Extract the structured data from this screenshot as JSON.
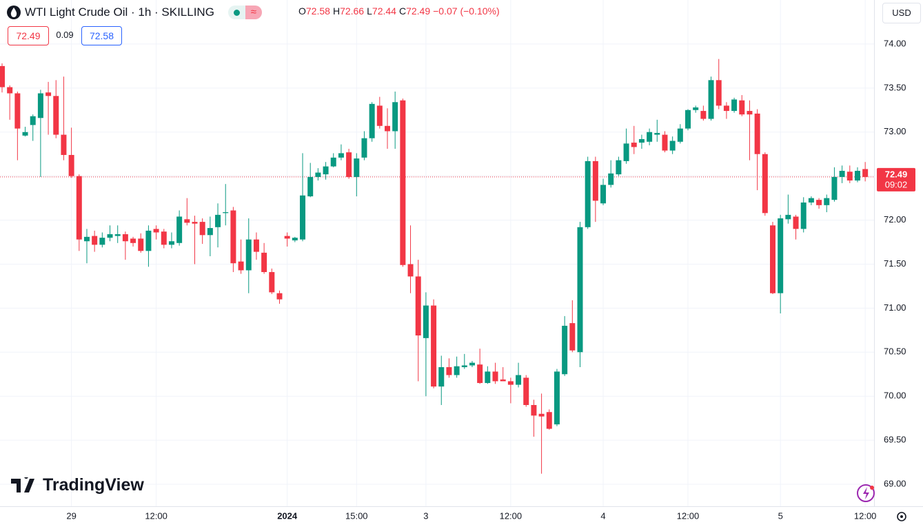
{
  "chart_data": {
    "type": "candlestick",
    "title": "WTI Light Crude Oil · 1h · SKILLING",
    "ohlc_legend": [
      {
        "key": "O",
        "value": "72.58"
      },
      {
        "key": "H",
        "value": "72.66"
      },
      {
        "key": "L",
        "value": "72.44"
      },
      {
        "key": "C",
        "value": "72.49"
      }
    ],
    "change": "−0.07 (−0.10%)",
    "bid": "72.49",
    "spread": "0.09",
    "ask": "72.58",
    "currency": "USD",
    "last_price_label": "72.49",
    "countdown": "09:02",
    "brand": "TradingView",
    "up_color": "#089981",
    "down_color": "#f23645",
    "grid": true,
    "ylim": [
      68.75,
      74.5
    ],
    "yticks": [
      {
        "value": 69,
        "label": "69.00"
      },
      {
        "value": 69.5,
        "label": "69.50"
      },
      {
        "value": 70,
        "label": "70.00"
      },
      {
        "value": 70.5,
        "label": "70.50"
      },
      {
        "value": 71,
        "label": "71.00"
      },
      {
        "value": 71.5,
        "label": "71.50"
      },
      {
        "value": 72,
        "label": "72.00"
      },
      {
        "value": 72.5,
        "label": "72.50"
      },
      {
        "value": 73,
        "label": "73.00"
      },
      {
        "value": 73.5,
        "label": "73.50"
      },
      {
        "value": 74,
        "label": "74.00"
      }
    ],
    "categories": [
      null,
      null,
      null,
      null,
      null,
      null,
      null,
      null,
      null,
      "29",
      null,
      null,
      null,
      null,
      null,
      null,
      null,
      null,
      null,
      null,
      "12:00",
      null,
      null,
      null,
      null,
      null,
      null,
      null,
      null,
      null,
      null,
      null,
      null,
      null,
      null,
      null,
      null,
      "2024",
      null,
      null,
      null,
      null,
      null,
      null,
      null,
      null,
      "15:00",
      null,
      null,
      null,
      null,
      null,
      null,
      null,
      null,
      "3",
      null,
      null,
      null,
      null,
      null,
      null,
      null,
      null,
      null,
      null,
      "12:00",
      null,
      null,
      null,
      null,
      null,
      null,
      null,
      null,
      null,
      null,
      null,
      "4",
      null,
      null,
      null,
      null,
      null,
      null,
      null,
      null,
      null,
      null,
      "12:00",
      null,
      null,
      null,
      null,
      null,
      null,
      null,
      null,
      null,
      null,
      null,
      "5",
      null,
      null,
      null,
      null,
      null,
      null,
      null,
      null,
      null,
      null,
      "12:00"
    ],
    "open": [
      73.75,
      73.51,
      73.44,
      72.96,
      73.08,
      73.16,
      73.45,
      73.41,
      72.97,
      72.74,
      72.5,
      71.76,
      71.82,
      71.72,
      71.8,
      71.82,
      71.84,
      71.79,
      71.79,
      71.65,
      71.9,
      71.87,
      71.72,
      71.74,
      72.01,
      71.98,
      71.98,
      71.83,
      71.92,
      72.08,
      72.11,
      71.53,
      71.43,
      71.78,
      71.63,
      71.41,
      71.17,
      71.82,
      71.77,
      71.78,
      72.27,
      72.49,
      72.52,
      72.61,
      72.71,
      72.77,
      72.49,
      72.71,
      72.93,
      73.3,
      73.07,
      73.01,
      73.36,
      71.5,
      71.36,
      70.66,
      71.03,
      70.11,
      70.33,
      70.24,
      70.33,
      70.35,
      70.36,
      70.15,
      70.28,
      70.19,
      70.17,
      70.13,
      70.21,
      69.9,
      69.8,
      69.82,
      69.68,
      70.25,
      70.83,
      70.5,
      71.92,
      72.67,
      72.19,
      72.4,
      72.52,
      72.67,
      72.88,
      72.88,
      72.89,
      72.97,
      72.97,
      72.79,
      72.89,
      73.04,
      73.25,
      73.24,
      73.15,
      73.59,
      73.3,
      73.24,
      73.36,
      73.24,
      73.21,
      72.75,
      71.94,
      71.17,
      72.01,
      72.04,
      71.9,
      72.2,
      72.23,
      72.17,
      72.23,
      72.49,
      72.55,
      72.45,
      72.58
    ],
    "high": [
      73.78,
      73.53,
      73.46,
      73.06,
      73.2,
      73.48,
      73.57,
      73.59,
      73.63,
      73.05,
      72.52,
      71.9,
      71.88,
      71.86,
      71.94,
      71.94,
      71.87,
      71.81,
      71.85,
      71.94,
      71.94,
      71.9,
      71.86,
      72.11,
      72.25,
      72.05,
      72.02,
      72.04,
      72.19,
      72.41,
      72.15,
      71.78,
      72.02,
      71.86,
      71.74,
      71.45,
      71.2,
      71.86,
      71.81,
      72.76,
      72.65,
      72.59,
      72.66,
      72.76,
      72.86,
      72.81,
      72.76,
      73.01,
      73.34,
      73.4,
      73.27,
      73.46,
      73.38,
      71.94,
      71.55,
      71.18,
      71.1,
      70.46,
      70.43,
      70.45,
      70.48,
      70.4,
      70.54,
      70.34,
      70.38,
      70.33,
      70.21,
      70.38,
      70.24,
      69.96,
      70.03,
      69.85,
      70.31,
      70.91,
      71.09,
      71.98,
      72.72,
      72.72,
      72.47,
      72.68,
      72.72,
      73.04,
      73.07,
      72.97,
      73.04,
      73.14,
      73.01,
      72.95,
      73.09,
      73.26,
      73.3,
      73.3,
      73.63,
      73.83,
      73.34,
      73.39,
      73.42,
      73.36,
      73.26,
      72.77,
      71.98,
      72.06,
      72.29,
      72.06,
      72.26,
      72.27,
      72.25,
      72.29,
      72.6,
      72.62,
      72.62,
      72.6,
      72.66
    ],
    "low": [
      73.45,
      73.14,
      72.68,
      72.95,
      72.9,
      72.49,
      72.97,
      72.93,
      72.68,
      72.48,
      71.65,
      71.51,
      71.64,
      71.69,
      71.76,
      71.74,
      71.55,
      71.7,
      71.63,
      71.47,
      71.78,
      71.68,
      71.68,
      71.71,
      71.94,
      71.5,
      71.73,
      71.59,
      71.69,
      71.94,
      71.41,
      71.39,
      71.17,
      71.55,
      71.39,
      71.16,
      71.05,
      71.7,
      71.75,
      71.76,
      72.26,
      72.45,
      72.46,
      72.6,
      72.68,
      72.47,
      72.27,
      72.68,
      72.89,
      73.04,
      72.81,
      72.81,
      71.47,
      71.17,
      70.17,
      70.0,
      70.09,
      69.9,
      70.21,
      70.21,
      70.31,
      70.33,
      70.14,
      70.14,
      70.14,
      70.17,
      69.92,
      70.1,
      69.88,
      69.54,
      69.12,
      69.62,
      69.66,
      70.23,
      70.5,
      70.33,
      71.9,
      71.98,
      72.17,
      72.37,
      72.5,
      72.64,
      72.75,
      72.81,
      72.85,
      72.89,
      72.77,
      72.75,
      72.87,
      73.02,
      73.22,
      73.13,
      73.13,
      73.26,
      73.15,
      73.22,
      73.18,
      72.68,
      72.34,
      72.05,
      71.16,
      70.94,
      71.96,
      71.78,
      71.86,
      72.17,
      72.13,
      72.09,
      72.21,
      72.42,
      72.42,
      72.43,
      72.44
    ],
    "close": [
      73.51,
      73.44,
      73.04,
      73.0,
      73.18,
      73.44,
      73.41,
      72.97,
      72.74,
      72.5,
      71.78,
      71.81,
      71.72,
      71.8,
      71.84,
      71.84,
      71.76,
      71.74,
      71.65,
      71.88,
      71.86,
      71.72,
      71.76,
      72.04,
      71.97,
      71.96,
      71.83,
      71.91,
      72.06,
      72.09,
      71.51,
      71.43,
      71.78,
      71.64,
      71.41,
      71.18,
      71.1,
      71.79,
      71.8,
      72.28,
      72.49,
      72.54,
      72.61,
      72.71,
      72.76,
      72.49,
      72.7,
      72.93,
      73.32,
      73.07,
      73.01,
      73.34,
      71.49,
      71.36,
      70.69,
      71.03,
      70.11,
      70.33,
      70.24,
      70.34,
      70.35,
      70.38,
      70.15,
      70.28,
      70.17,
      70.17,
      70.13,
      70.24,
      69.9,
      69.78,
      69.77,
      69.63,
      70.28,
      70.8,
      70.52,
      71.92,
      72.67,
      72.22,
      72.4,
      72.53,
      72.68,
      72.87,
      72.83,
      72.92,
      73.0,
      72.99,
      72.79,
      72.9,
      73.04,
      73.25,
      73.28,
      73.15,
      73.59,
      73.3,
      73.24,
      73.37,
      73.2,
      73.2,
      72.75,
      72.08,
      71.17,
      72.02,
      72.06,
      71.9,
      72.2,
      72.25,
      72.17,
      72.25,
      72.49,
      72.56,
      72.45,
      72.56,
      72.49
    ]
  }
}
